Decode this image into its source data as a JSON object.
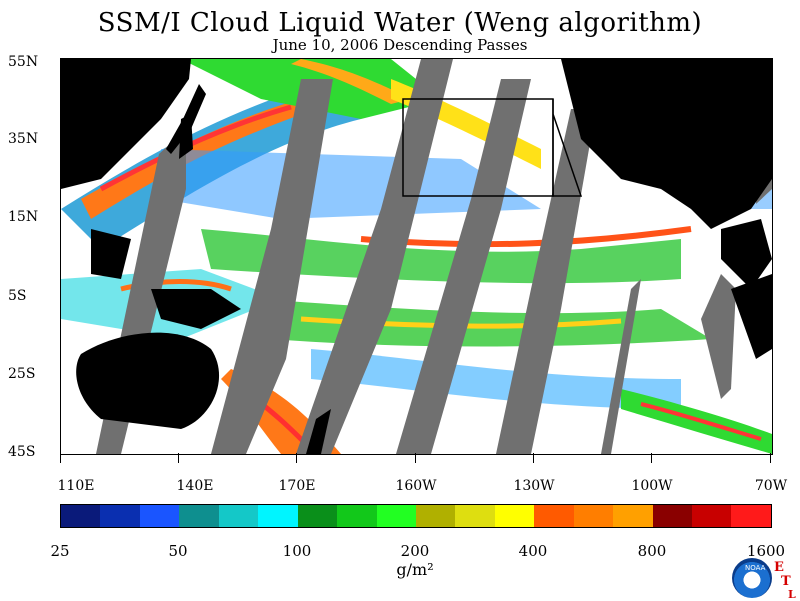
{
  "title": "SSM/I Cloud Liquid Water (Weng algorithm)",
  "subtitle": "June 10, 2006  Descending Passes",
  "lat_labels": [
    "55N",
    "35N",
    "15N",
    "5S",
    "25S",
    "45S"
  ],
  "lon_labels": [
    "110E",
    "140E",
    "170E",
    "160W",
    "130W",
    "100W",
    "70W"
  ],
  "colorbar": {
    "labels": [
      "25",
      "50",
      "100",
      "200",
      "400",
      "800",
      "1600"
    ],
    "units": "g/m²",
    "colors": [
      "#0a1a7a",
      "#0a2fb0",
      "#1a55ff",
      "#0e8f8f",
      "#14c8c8",
      "#00f5ff",
      "#0a8f1a",
      "#12c81a",
      "#22ff22",
      "#b0b000",
      "#dede10",
      "#ffff00",
      "#ff5a00",
      "#ff7e00",
      "#ffa000",
      "#8a0000",
      "#c80000",
      "#ff1a1a"
    ]
  },
  "logo": {
    "name": "noaa-logo",
    "text": "NOAA"
  },
  "corner_mark": {
    "letters": [
      "E",
      "T",
      "L"
    ]
  }
}
